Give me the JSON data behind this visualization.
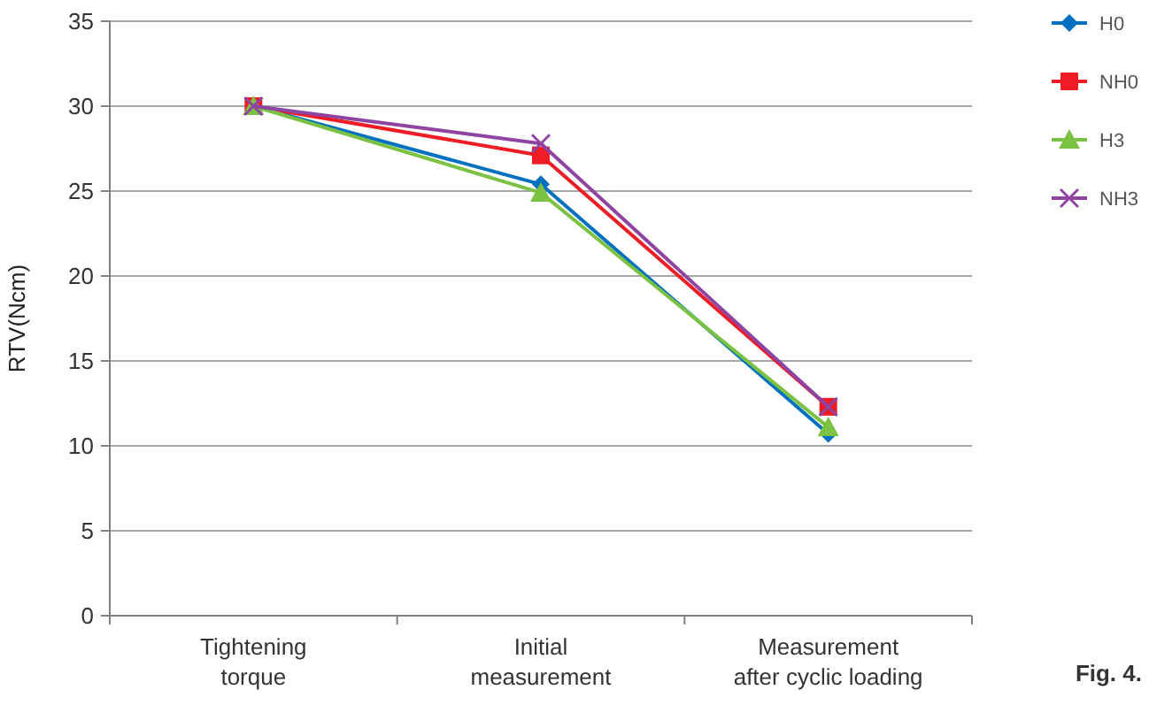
{
  "chart_data": {
    "type": "line",
    "ylabel": "RTV(Ncm)",
    "categories": [
      "Tightening\ntorque",
      "Initial\nmeasurement",
      "Measurement\nafter cyclic loading"
    ],
    "series": [
      {
        "name": "H0",
        "color": "#0070c0",
        "marker": "diamond",
        "values": [
          30,
          25.4,
          10.7
        ]
      },
      {
        "name": "NH0",
        "color": "#ee1c25",
        "marker": "square",
        "values": [
          30,
          27.1,
          12.3
        ]
      },
      {
        "name": "H3",
        "color": "#7cc242",
        "marker": "triangle",
        "values": [
          30,
          24.9,
          11.1
        ]
      },
      {
        "name": "NH3",
        "color": "#8e44a0",
        "marker": "cross",
        "values": [
          30,
          27.8,
          12.3
        ]
      }
    ],
    "ylim": [
      0,
      35
    ],
    "yticks": [
      0,
      5,
      10,
      15,
      20,
      25,
      30,
      35
    ],
    "grid": "y",
    "legend": "top right",
    "annotations": [
      "Fig. 4."
    ]
  }
}
